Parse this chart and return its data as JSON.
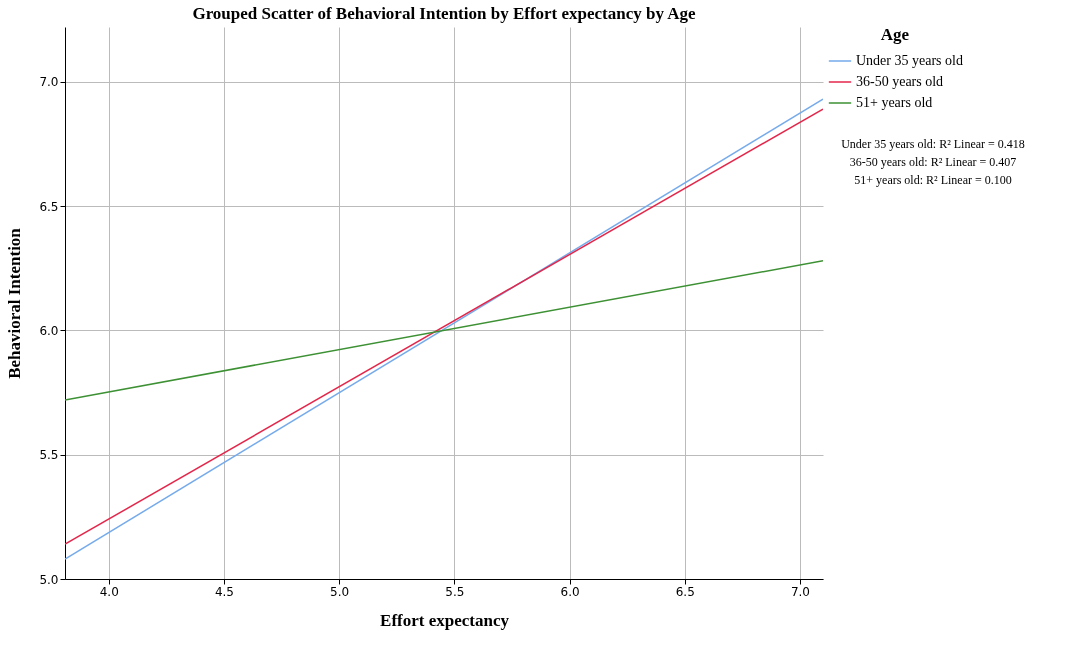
{
  "chart_data": {
    "type": "line",
    "title": "Grouped Scatter of Behavioral Intention by Effort expectancy by Age",
    "xlabel": "Effort expectancy",
    "ylabel": "Behavioral Intention",
    "legend_title": "Age",
    "series": [
      {
        "name": "Under 35 years old",
        "color": "#75aaeb",
        "values": [
          5.08,
          6.93
        ]
      },
      {
        "name": "36-50 years old",
        "color": "#e3264a",
        "values": [
          5.14,
          6.89
        ]
      },
      {
        "name": "51+ years old",
        "color": "#3d9134",
        "values": [
          5.72,
          6.28
        ]
      }
    ],
    "x": [
      3.81,
      7.1
    ],
    "xlim": [
      3.81,
      7.1
    ],
    "xticks": [
      {
        "value": 4,
        "label": "4.0"
      },
      4.5,
      {
        "value": 5,
        "label": "5.0"
      },
      5.5,
      {
        "value": 6,
        "label": "6.0"
      },
      6.5,
      {
        "value": 7,
        "label": "7.0"
      }
    ],
    "ylim": [
      5.0,
      7.22
    ],
    "yticks": [
      {
        "value": 5,
        "label": "5.0"
      },
      5.5,
      {
        "value": 6,
        "label": "6.0"
      },
      6.5,
      {
        "value": 7,
        "label": "7.0"
      }
    ],
    "annotations": [
      "Under 35 years old: R² Linear = 0.418",
      "36-50 years old: R² Linear = 0.407",
      "51+ years old: R² Linear = 0.100"
    ],
    "grid": true,
    "legend": "right",
    "marker": "none",
    "line_style": "solid"
  }
}
